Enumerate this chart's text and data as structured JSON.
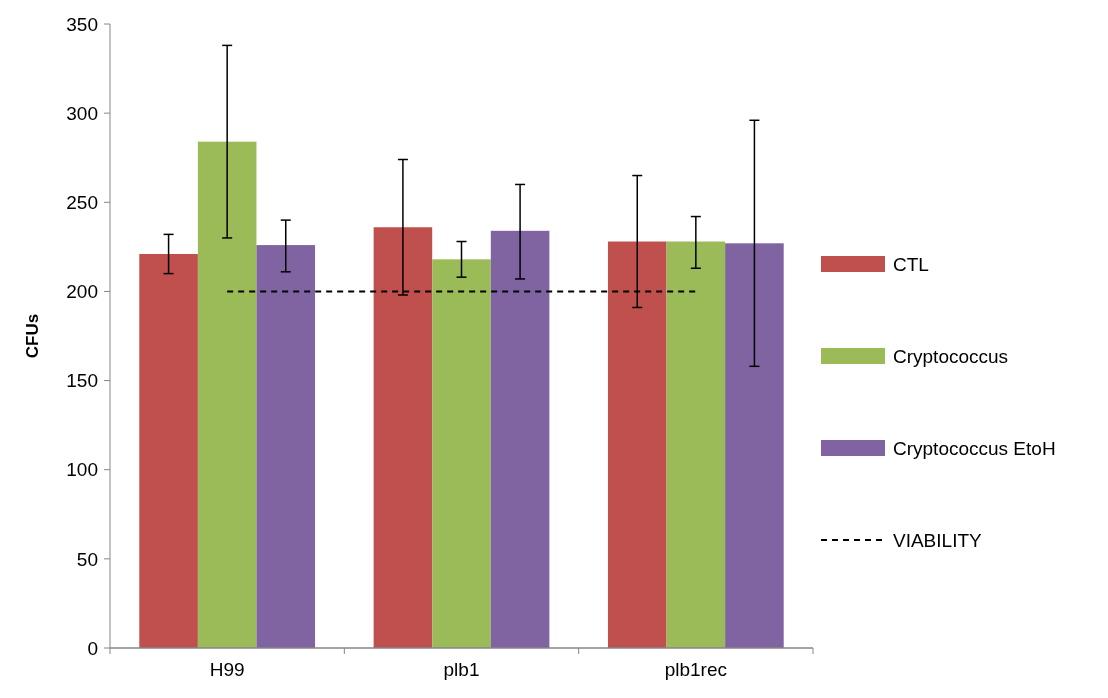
{
  "chart_data": {
    "type": "bar",
    "ylabel": "CFUs",
    "categories": [
      "H99",
      "plb1",
      "plb1rec"
    ],
    "series": [
      {
        "name": "CTL",
        "color": "#c0504d",
        "values": [
          221,
          236,
          228
        ],
        "errors": [
          [
            210,
            232
          ],
          [
            198,
            274
          ],
          [
            191,
            265
          ]
        ]
      },
      {
        "name": "Cryptococcus",
        "color": "#9bbb59",
        "values": [
          284,
          218,
          228
        ],
        "errors": [
          [
            230,
            338
          ],
          [
            208,
            228
          ],
          [
            213,
            242
          ]
        ]
      },
      {
        "name": "Cryptococcus EtoH",
        "color": "#8064a2",
        "values": [
          226,
          234,
          227
        ],
        "errors": [
          [
            211,
            240
          ],
          [
            207,
            260
          ],
          [
            158,
            296
          ]
        ]
      },
      {
        "name": "VIABILITY",
        "type": "line",
        "color": "#000000",
        "line_style": "dashed",
        "values": [
          200,
          200,
          200
        ]
      }
    ],
    "ylim": [
      0,
      350
    ],
    "yticks": [
      0,
      50,
      100,
      150,
      200,
      250,
      300,
      350
    ],
    "grid": false,
    "legend": "right"
  }
}
